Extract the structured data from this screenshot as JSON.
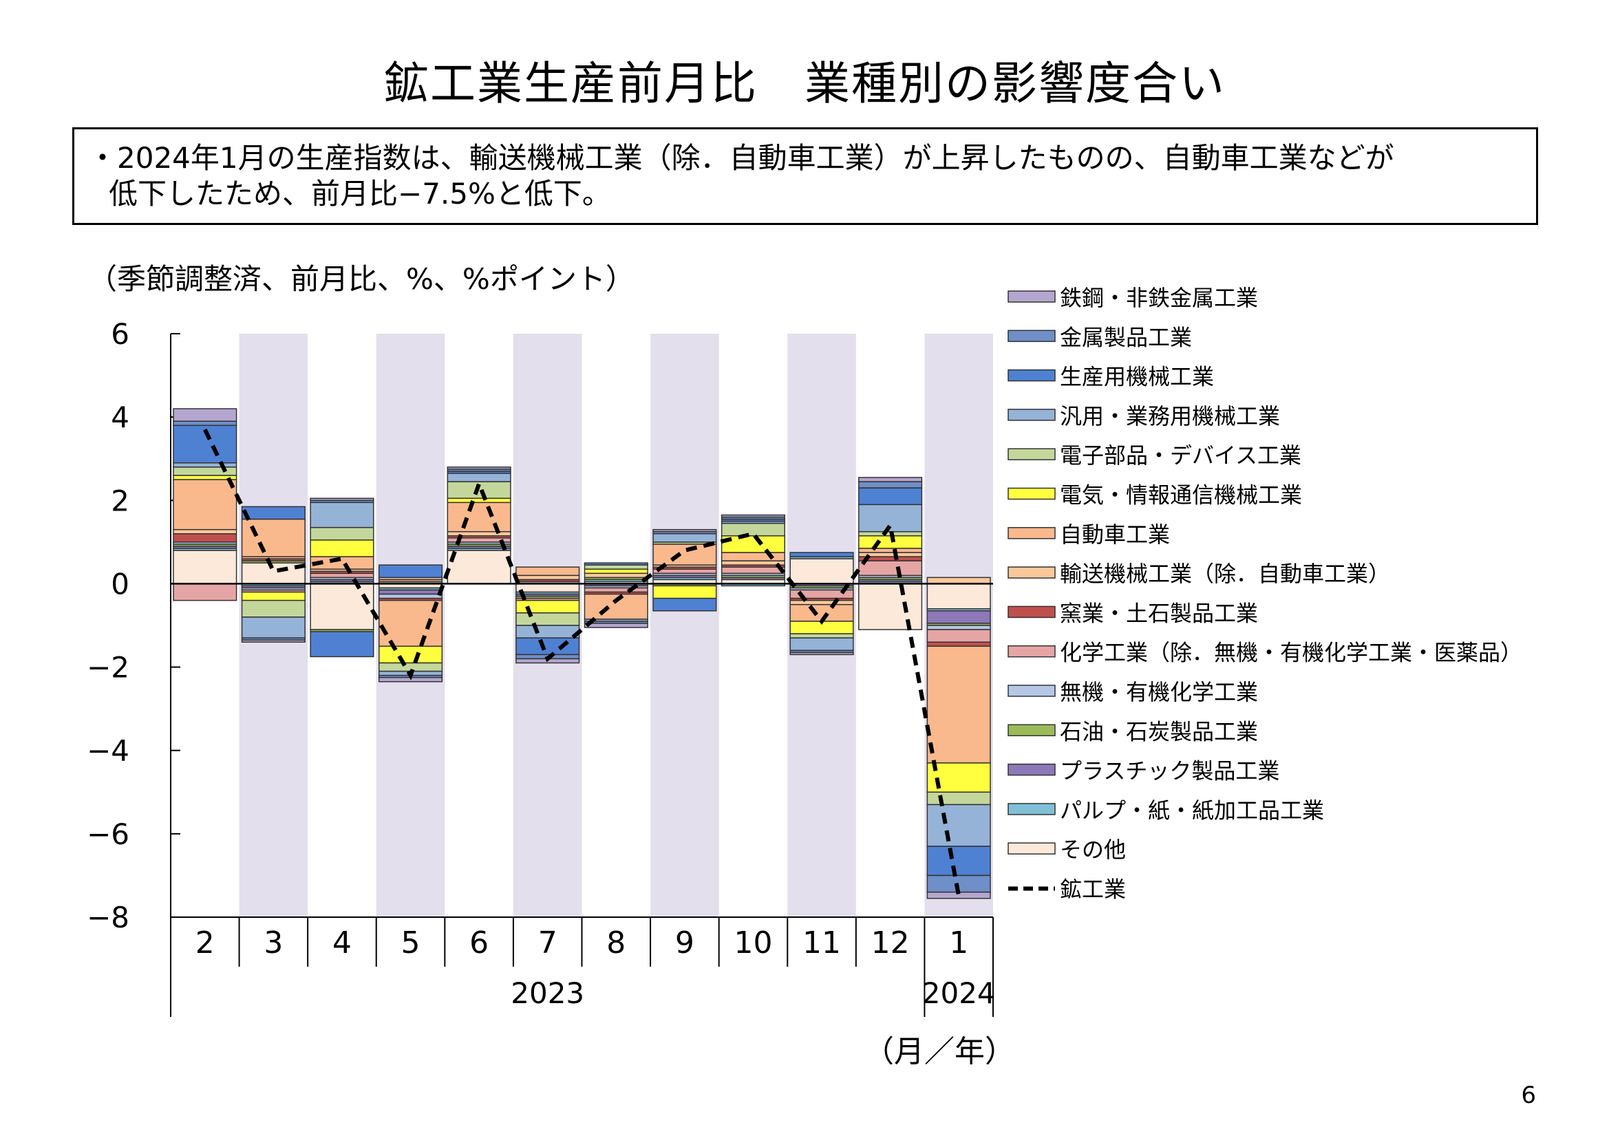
{
  "title": "鉱工業生産前月比　業種別の影響度合い",
  "summary": {
    "line1": "・2024年1月の生産指数は、輸送機械工業（除．自動車工業）が上昇したものの、自動車工業などが",
    "line2": "低下したため、前月比−7.5%と低下。"
  },
  "unit_label": "（季節調整済、前月比、%、%ポイント）",
  "xaxis_unit": "（月／年）",
  "page_number": "6",
  "chart_data": {
    "type": "bar",
    "stacked": true,
    "ylim": [
      -8,
      6
    ],
    "yticks": [
      "6",
      "4",
      "2",
      "0",
      "−2",
      "−4",
      "−6",
      "−8"
    ],
    "categories": [
      "2",
      "3",
      "4",
      "5",
      "6",
      "7",
      "8",
      "9",
      "10",
      "11",
      "12",
      "1"
    ],
    "year_labels": [
      "2023",
      "2024"
    ],
    "shaded_categories": [
      "3",
      "5",
      "7",
      "9",
      "11",
      "1"
    ],
    "series": [
      {
        "name": "その他",
        "color": "#fde9d9",
        "values": [
          0.8,
          0.5,
          -1.1,
          -0.1,
          0.8,
          -0.2,
          0.05,
          0.1,
          0.1,
          0.6,
          -1.1,
          -0.6
        ]
      },
      {
        "name": "パルプ・紙・紙加工品工業",
        "color": "#7fc0d8",
        "values": [
          0.05,
          -0.05,
          0.05,
          -0.05,
          0.05,
          -0.05,
          0.05,
          0.05,
          -0.05,
          0.05,
          0.05,
          -0.05
        ]
      },
      {
        "name": "プラスチック製品工業",
        "color": "#8d78b8",
        "values": [
          0.05,
          -0.05,
          0.05,
          -0.1,
          0.05,
          -0.05,
          -0.05,
          0.05,
          0.05,
          -0.05,
          0.05,
          -0.3
        ]
      },
      {
        "name": "石油・石炭製品工業",
        "color": "#9bbb59",
        "values": [
          0.05,
          0.05,
          -0.05,
          0.05,
          0.05,
          -0.05,
          0.05,
          -0.05,
          0.05,
          -0.05,
          0.05,
          -0.05
        ]
      },
      {
        "name": "無機・有機化学工業",
        "color": "#b4c7e7",
        "values": [
          0.05,
          -0.05,
          0.05,
          -0.1,
          0.05,
          0.05,
          -0.05,
          0.05,
          0.05,
          -0.05,
          0.05,
          -0.1
        ]
      },
      {
        "name": "化学工業（除．無機・有機化学工業・医薬品）",
        "color": "#e6a5a5",
        "values": [
          -0.4,
          -0.05,
          0.1,
          0.05,
          0.1,
          -0.05,
          -0.1,
          0.1,
          0.15,
          -0.2,
          0.35,
          -0.3
        ]
      },
      {
        "name": "窯業・土石製品工業",
        "color": "#c0504d",
        "values": [
          0.2,
          0.05,
          0.05,
          -0.05,
          0.05,
          0.05,
          -0.05,
          0.05,
          0.05,
          -0.05,
          0.1,
          -0.1
        ]
      },
      {
        "name": "輸送機械工業（除．自動車工業）",
        "color": "#fbc89b",
        "values": [
          0.1,
          0.05,
          0.05,
          0.05,
          0.1,
          0.1,
          0.1,
          0.05,
          0.1,
          -0.1,
          0.1,
          0.15
        ]
      },
      {
        "name": "自動車工業",
        "color": "#fab98c",
        "values": [
          1.2,
          0.9,
          0.3,
          -1.1,
          0.7,
          0.2,
          -0.6,
          0.5,
          0.2,
          -0.4,
          0.1,
          -2.8
        ]
      },
      {
        "name": "電気・情報通信機械工業",
        "color": "#ffff40",
        "values": [
          0.1,
          -0.2,
          0.4,
          -0.4,
          0.1,
          -0.3,
          0.1,
          -0.3,
          0.4,
          -0.3,
          0.3,
          -0.7
        ]
      },
      {
        "name": "電子部品・デバイス工業",
        "color": "#c4d79b",
        "values": [
          0.2,
          -0.4,
          0.3,
          -0.2,
          0.4,
          -0.3,
          0.1,
          0.05,
          0.3,
          -0.1,
          0.1,
          -0.3
        ]
      },
      {
        "name": "汎用・業務用機械工業",
        "color": "#95b3d7",
        "values": [
          0.1,
          -0.5,
          0.6,
          -0.1,
          0.2,
          -0.3,
          -0.05,
          0.2,
          0.05,
          -0.3,
          0.65,
          -1.0
        ]
      },
      {
        "name": "生産用機械工業",
        "color": "#4f81d3",
        "values": [
          0.9,
          0.3,
          -0.6,
          0.3,
          0.05,
          -0.4,
          0.05,
          -0.3,
          0.05,
          0.1,
          0.4,
          -0.7
        ]
      },
      {
        "name": "金属製品工業",
        "color": "#6f8fc8",
        "values": [
          0.1,
          -0.05,
          0.05,
          -0.05,
          0.05,
          -0.1,
          -0.05,
          0.05,
          0.05,
          -0.05,
          0.15,
          -0.4
        ]
      },
      {
        "name": "鉄鋼・非鉄金属工業",
        "color": "#b5a6d0",
        "values": [
          0.3,
          -0.05,
          0.05,
          -0.1,
          0.05,
          -0.1,
          -0.1,
          0.05,
          0.05,
          -0.05,
          0.1,
          -0.15
        ]
      }
    ],
    "line": {
      "name": "鉱工業",
      "values": [
        3.7,
        0.3,
        0.6,
        -2.2,
        2.4,
        -1.8,
        -0.4,
        0.8,
        1.2,
        -0.9,
        1.4,
        -7.5
      ]
    }
  }
}
